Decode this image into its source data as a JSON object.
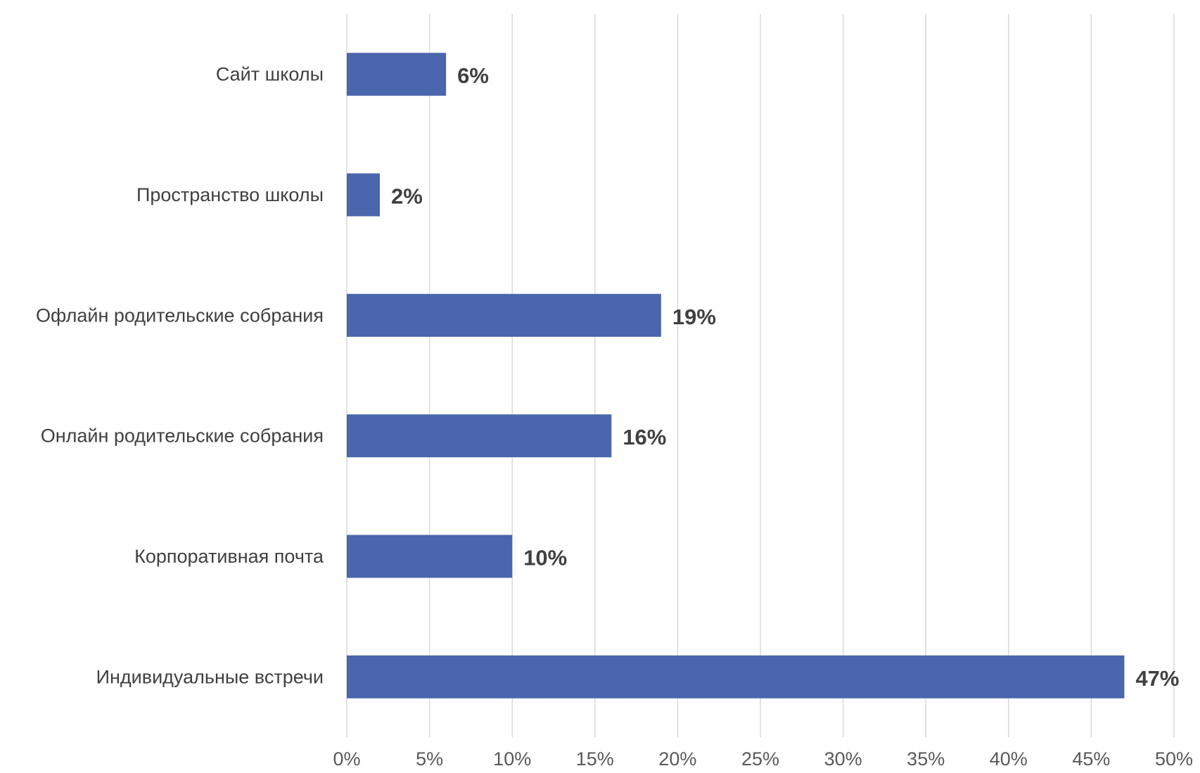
{
  "chart_data": {
    "type": "bar",
    "orientation": "horizontal",
    "categories": [
      "Сайт школы",
      "Пространство школы",
      "Офлайн родительские собрания",
      "Онлайн родительские собрания",
      "Корпоративная почта",
      "Индивидуальные встречи"
    ],
    "values": [
      6,
      2,
      19,
      16,
      10,
      47
    ],
    "data_labels": [
      "6%",
      "2%",
      "19%",
      "16%",
      "10%",
      "47%"
    ],
    "x_ticks": [
      "0%",
      "5%",
      "10%",
      "15%",
      "20%",
      "25%",
      "30%",
      "35%",
      "40%",
      "45%",
      "50%"
    ],
    "xlim": [
      0,
      50
    ],
    "grid": true,
    "legend": "none",
    "title": "",
    "xlabel": "",
    "ylabel": "",
    "colors": {
      "bar": "#4A66AC",
      "grid": "#D9D9D9",
      "category_text": "#404040",
      "tick_text": "#595959",
      "data_label_text": "#404040"
    }
  }
}
